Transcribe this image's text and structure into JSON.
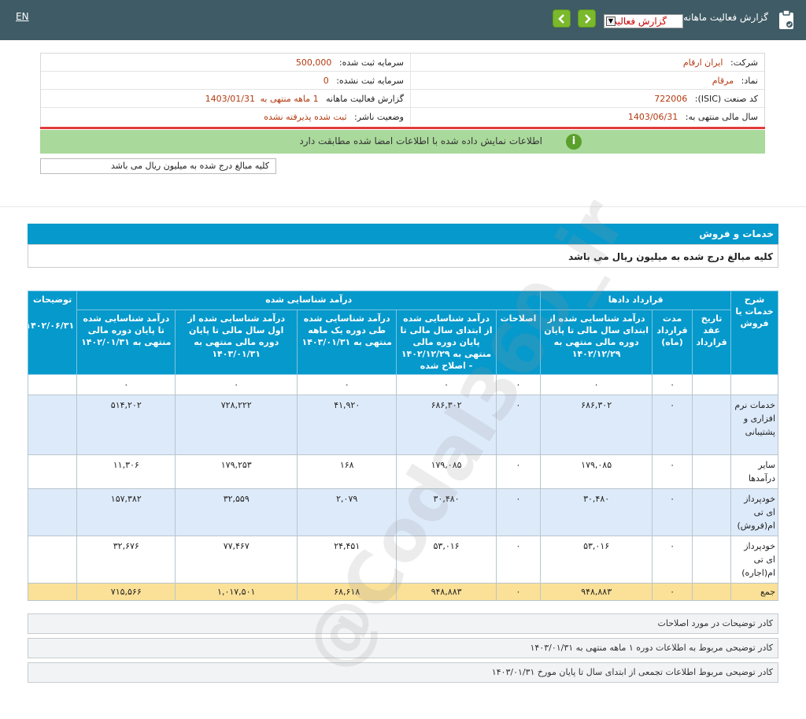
{
  "header": {
    "lang_link": "EN",
    "title": "گزارش فعالیت ماهانه",
    "report_select_value": "گزارش فعالیت"
  },
  "company": {
    "company_label": "شرکت:",
    "company_value": "ایران ارقام",
    "symbol_label": "نماد:",
    "symbol_value": "مرقام",
    "isic_label": "کد صنعت (ISIC):",
    "isic_value": "722006",
    "fiscal_label": "سال مالی منتهی به:",
    "fiscal_value": "1403/06/31",
    "capital_reg_label": "سرمایه ثبت شده:",
    "capital_reg_value": "500,000",
    "capital_unreg_label": "سرمایه ثبت نشده:",
    "capital_unreg_value": "0",
    "report_label": "گزارش فعالیت ماهانه",
    "report_period": "1 ماهه منتهی به",
    "report_date": "1403/01/31",
    "publisher_label": "وضعیت ناشر:",
    "publisher_value": "ثبت شده پذیرفته نشده"
  },
  "notice": "اطلاعات نمایش داده شده با اطلاعات امضا شده مطابقت دارد",
  "unit_note": "کلیه مبالغ درج شده به میلیون ریال می باشد",
  "section": {
    "title": "خدمات و فروش",
    "subtitle": "کلیه مبالغ درج شده به میلیون ریال می باشد"
  },
  "table": {
    "group_contracts": "قرارداد دادها",
    "group_revenue": "درآمد شناسایی شده",
    "col_desc": "شرح خدمات یا فروش",
    "col_date": "تاریخ عقد قرارداد",
    "col_duration": "مدت قرارداد (ماه)",
    "col_rev_cum": "درآمد شناسایی شده از ابتدای سال مالی تا پایان دوره مالی منتهی به ۱۴۰۲/۱۲/۲۹",
    "col_corr": "اصلاحات",
    "col_rev_cum_corr": "درآمد شناسایی شده از ابتدای سال مالی تا پایان دوره مالی منتهی به ۱۴۰۲/۱۲/۲۹ - اصلاح شده",
    "col_rev_period": "درآمد شناسایی شده طی دوره یک ماهه منتهی به ۱۴۰۳/۰۱/۳۱",
    "col_rev_ytd": "درآمد شناسایی شده از اول سال مالی تا پایان دوره مالی منتهی به ۱۴۰۳/۰۱/۳۱",
    "col_rev_last": "درآمد شناسایی شده تا پایان دوره مالی منتهی به ۱۴۰۲/۰۱/۳۱",
    "col_notes": "توضیحات",
    "col_notes_sub": "۱۴۰۲/۰۶/۳۱",
    "zero_row": [
      "",
      "",
      "۰",
      "۰",
      "۰",
      "۰",
      "۰",
      "۰",
      "۰",
      ""
    ],
    "rows": [
      {
        "desc": "خدمات نرم افزاری و پشتیبانی",
        "date": "",
        "duration": "۰",
        "rev_cum": "۶۸۶,۳۰۲",
        "corr": "۰",
        "rev_cum_corr": "۶۸۶,۳۰۲",
        "rev_period": "۴۱,۹۲۰",
        "rev_ytd": "۷۲۸,۲۲۲",
        "rev_last": "۵۱۴,۲۰۲",
        "notes": ""
      },
      {
        "desc": "سایر درآمدها",
        "date": "",
        "duration": "۰",
        "rev_cum": "۱۷۹,۰۸۵",
        "corr": "۰",
        "rev_cum_corr": "۱۷۹,۰۸۵",
        "rev_period": "۱۶۸",
        "rev_ytd": "۱۷۹,۲۵۳",
        "rev_last": "۱۱,۳۰۶",
        "notes": ""
      },
      {
        "desc": "خودپرداز ای تی ام(فروش)",
        "date": "",
        "duration": "۰",
        "rev_cum": "۳۰,۴۸۰",
        "corr": "۰",
        "rev_cum_corr": "۳۰,۴۸۰",
        "rev_period": "۲,۰۷۹",
        "rev_ytd": "۳۲,۵۵۹",
        "rev_last": "۱۵۷,۳۸۲",
        "notes": ""
      },
      {
        "desc": "خودپرداز ای تی ام(اجاره)",
        "date": "",
        "duration": "۰",
        "rev_cum": "۵۳,۰۱۶",
        "corr": "۰",
        "rev_cum_corr": "۵۳,۰۱۶",
        "rev_period": "۲۴,۴۵۱",
        "rev_ytd": "۷۷,۴۶۷",
        "rev_last": "۳۲,۶۷۶",
        "notes": ""
      }
    ],
    "total": {
      "label": "جمع",
      "date": "",
      "duration": "۰",
      "rev_cum": "۹۴۸,۸۸۳",
      "corr": "۰",
      "rev_cum_corr": "۹۴۸,۸۸۳",
      "rev_period": "۶۸,۶۱۸",
      "rev_ytd": "۱,۰۱۷,۵۰۱",
      "rev_last": "۷۱۵,۵۶۶",
      "notes": ""
    }
  },
  "explanations": [
    "کادر توضیحات در مورد اصلاحات",
    "کادر توضیحی مربوط به اطلاعات دوره ۱ ماهه منتهی به ۱۴۰۳/۰۱/۳۱",
    "کادر توضیحی مربوط اطلاعات تجمعی از ابتدای سال تا پایان مورخ ۱۴۰۳/۰۱/۳۱"
  ],
  "watermark": "@Codal360_ir"
}
